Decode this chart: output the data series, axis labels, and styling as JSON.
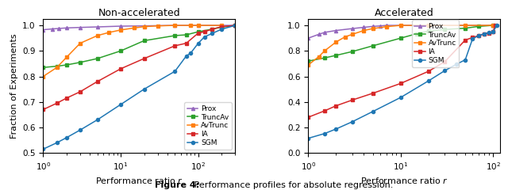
{
  "title_left": "Non-accelerated",
  "title_right": "Accelerated",
  "xlabel": "Performance ratio $r$",
  "ylabel": "Fraction of Experiments",
  "figure_caption_bold": "Figure 4:",
  "figure_caption_normal": "   Performance profiles for absolute regression.",
  "legend_labels": [
    "Prox",
    "TruncAv",
    "AvTrunc",
    "IA",
    "SGM"
  ],
  "colors": {
    "Prox": "#9467bd",
    "TruncAv": "#2ca02c",
    "AvTrunc": "#ff7f0e",
    "IA": "#d62728",
    "SGM": "#1f77b4"
  },
  "markers": {
    "Prox": "^",
    "TruncAv": "s",
    "AvTrunc": "s",
    "IA": "s",
    "SGM": "o"
  },
  "left": {
    "Prox": {
      "x": [
        1,
        1.3,
        1.6,
        2,
        3,
        5,
        10,
        20,
        50,
        100,
        200,
        300
      ],
      "y": [
        0.983,
        0.986,
        0.988,
        0.99,
        0.992,
        0.994,
        0.997,
        0.998,
        1.0,
        1.0,
        1.0,
        1.0
      ]
    },
    "TruncAv": {
      "x": [
        1,
        1.5,
        2,
        3,
        5,
        10,
        20,
        50,
        70,
        100,
        150,
        200,
        300
      ],
      "y": [
        0.835,
        0.84,
        0.845,
        0.855,
        0.87,
        0.9,
        0.94,
        0.96,
        0.963,
        0.975,
        0.985,
        0.993,
        1.0
      ]
    },
    "AvTrunc": {
      "x": [
        1,
        1.5,
        2,
        3,
        5,
        7,
        10,
        15,
        20,
        30,
        50,
        80,
        100,
        200
      ],
      "y": [
        0.8,
        0.835,
        0.875,
        0.93,
        0.96,
        0.972,
        0.982,
        0.99,
        0.995,
        0.998,
        1.0,
        1.0,
        1.0,
        1.0
      ]
    },
    "IA": {
      "x": [
        1,
        1.5,
        2,
        3,
        5,
        10,
        20,
        50,
        70,
        100,
        120,
        150,
        200,
        300
      ],
      "y": [
        0.67,
        0.695,
        0.715,
        0.74,
        0.78,
        0.83,
        0.87,
        0.92,
        0.93,
        0.97,
        0.975,
        0.985,
        0.995,
        1.0
      ]
    },
    "SGM": {
      "x": [
        1,
        1.5,
        2,
        3,
        5,
        10,
        20,
        50,
        70,
        80,
        100,
        120,
        150,
        200,
        300
      ],
      "y": [
        0.515,
        0.54,
        0.56,
        0.59,
        0.63,
        0.69,
        0.75,
        0.82,
        0.88,
        0.892,
        0.93,
        0.955,
        0.968,
        0.985,
        1.0
      ]
    }
  },
  "right": {
    "Prox": {
      "x": [
        1,
        1.3,
        1.5,
        2,
        3,
        4,
        5,
        6,
        7,
        10,
        20,
        50,
        100
      ],
      "y": [
        0.9,
        0.93,
        0.945,
        0.96,
        0.975,
        0.985,
        0.992,
        0.996,
        1.0,
        1.0,
        1.0,
        1.0,
        1.0
      ]
    },
    "TruncAv": {
      "x": [
        1,
        1.5,
        2,
        3,
        5,
        10,
        15,
        20,
        30,
        50,
        70,
        100
      ],
      "y": [
        0.72,
        0.745,
        0.765,
        0.795,
        0.84,
        0.9,
        0.935,
        0.955,
        0.968,
        0.978,
        0.992,
        1.0
      ]
    },
    "AvTrunc": {
      "x": [
        1,
        1.3,
        1.5,
        2,
        2.5,
        3,
        4,
        5,
        7,
        10,
        20,
        50,
        100
      ],
      "y": [
        0.69,
        0.755,
        0.8,
        0.87,
        0.91,
        0.93,
        0.96,
        0.975,
        0.99,
        1.0,
        1.0,
        1.0,
        1.0
      ]
    },
    "IA": {
      "x": [
        1,
        1.5,
        2,
        3,
        5,
        10,
        20,
        30,
        50,
        60,
        70,
        80,
        90,
        100,
        105
      ],
      "y": [
        0.28,
        0.33,
        0.37,
        0.415,
        0.468,
        0.545,
        0.64,
        0.715,
        0.885,
        0.905,
        0.92,
        0.932,
        0.94,
        0.948,
        1.0
      ]
    },
    "SGM": {
      "x": [
        1,
        1.5,
        2,
        3,
        5,
        10,
        20,
        30,
        40,
        50,
        60,
        70,
        80,
        90,
        100,
        110
      ],
      "y": [
        0.115,
        0.152,
        0.188,
        0.245,
        0.325,
        0.435,
        0.565,
        0.645,
        0.695,
        0.73,
        0.895,
        0.92,
        0.935,
        0.942,
        0.95,
        1.0
      ]
    }
  },
  "ylim_left": [
    0.5,
    1.025
  ],
  "ylim_right": [
    0.0,
    1.05
  ],
  "xlim_left": [
    1,
    300
  ],
  "xlim_right": [
    1,
    120
  ],
  "yticks_left": [
    0.5,
    0.6,
    0.7,
    0.8,
    0.9,
    1.0
  ],
  "yticks_right": [
    0.0,
    0.2,
    0.4,
    0.6,
    0.8,
    1.0
  ]
}
